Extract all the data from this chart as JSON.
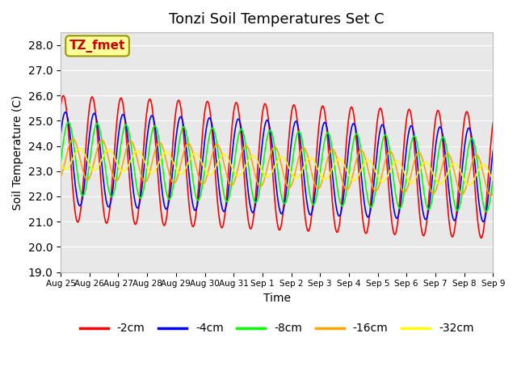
{
  "title": "Tonzi Soil Temperatures Set C",
  "xlabel": "Time",
  "ylabel": "Soil Temperature (C)",
  "ylim": [
    19.0,
    28.5
  ],
  "yticks": [
    19.0,
    20.0,
    21.0,
    22.0,
    23.0,
    24.0,
    25.0,
    26.0,
    27.0,
    28.0
  ],
  "xtick_labels": [
    "Aug 25",
    "Aug 26",
    "Aug 27",
    "Aug 28",
    "Aug 29",
    "Aug 30",
    "Aug 31",
    "Sep 1",
    "Sep 2",
    "Sep 3",
    "Sep 4",
    "Sep 5",
    "Sep 6",
    "Sep 7",
    "Sep 8",
    "Sep 9"
  ],
  "legend_labels": [
    "-2cm",
    "-4cm",
    "-8cm",
    "-16cm",
    "-32cm"
  ],
  "colors": [
    "red",
    "blue",
    "lime",
    "orange",
    "yellow"
  ],
  "annotation_text": "TZ_fmet",
  "annotation_color": "#cc0000",
  "annotation_bg": "#FFFF99",
  "background_color": "#e8e8e8",
  "title_fontsize": 13,
  "axis_label_fontsize": 10,
  "legend_fontsize": 10,
  "n_points": 480,
  "days": 15,
  "mean_temp": 23.5,
  "amp_2cm": 2.5,
  "amp_4cm": 1.85,
  "amp_8cm": 1.45,
  "amp_16cm": 0.8,
  "amp_32cm": 0.42,
  "phase_shift_4cm": 0.45,
  "phase_shift_8cm": 1.1,
  "phase_shift_16cm": 2.1,
  "phase_shift_32cm": 3.6,
  "trend_slope": -0.045
}
